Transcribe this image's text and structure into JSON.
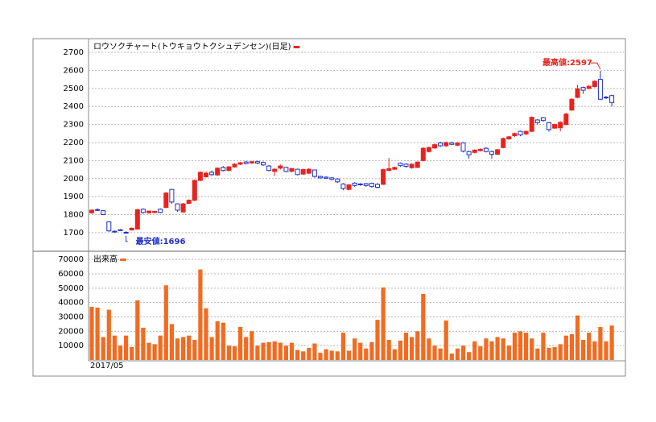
{
  "chart_data": [
    {
      "type": "candlestick",
      "title": "ロウソクチャート(トウキョウトクシュデンセン)(日足)",
      "up_color": "#e8231e",
      "down_color": "#ffffff",
      "down_edge": "#1c2fc8",
      "legend_color": "#e8231e",
      "ylim": [
        1597,
        2776
      ],
      "yticks": [
        1700,
        1800,
        1900,
        2000,
        2100,
        2200,
        2300,
        2400,
        2500,
        2600,
        2700
      ],
      "grid": true,
      "annotations": [
        {
          "text": "最高値:2597",
          "index": 89,
          "price": 2597,
          "color": "#e8231e"
        },
        {
          "text": "最安値:1696",
          "index": 6,
          "price": 1696,
          "color": "#1c2fc8"
        }
      ],
      "open": [
        1810,
        1828,
        1822,
        1760,
        1708,
        1716,
        1702,
        1715,
        1720,
        1830,
        1810,
        1812,
        1830,
        1840,
        1940,
        1860,
        1815,
        1862,
        1880,
        1990,
        2010,
        2035,
        2020,
        2062,
        2045,
        2065,
        2080,
        2092,
        2086,
        2094,
        2090,
        2070,
        2040,
        2058,
        2062,
        2040,
        2052,
        2025,
        2030,
        2048,
        2012,
        2008,
        2004,
        1998,
        1970,
        1940,
        1975,
        1970,
        1972,
        1974,
        1968,
        1968,
        2045,
        2052,
        2085,
        2080,
        2060,
        2062,
        2100,
        2150,
        2170,
        2198,
        2182,
        2198,
        2185,
        2198,
        2150,
        2145,
        2155,
        2168,
        2150,
        2135,
        2172,
        2220,
        2238,
        2262,
        2248,
        2262,
        2325,
        2338,
        2310,
        2280,
        2282,
        2300,
        2380,
        2450,
        2505,
        2500,
        2510,
        2550,
        2452,
        2460
      ],
      "high": [
        1830,
        1835,
        1825,
        1762,
        1712,
        1720,
        1708,
        1728,
        1832,
        1835,
        1822,
        1822,
        1835,
        1925,
        1942,
        1862,
        1865,
        1885,
        1995,
        2040,
        2040,
        2045,
        2062,
        2070,
        2070,
        2085,
        2092,
        2098,
        2098,
        2100,
        2095,
        2075,
        2058,
        2078,
        2066,
        2060,
        2055,
        2055,
        2058,
        2050,
        2016,
        2012,
        2008,
        2002,
        1975,
        1970,
        1980,
        1975,
        1976,
        1978,
        1975,
        2055,
        2115,
        2066,
        2090,
        2085,
        2085,
        2095,
        2175,
        2178,
        2195,
        2205,
        2205,
        2205,
        2202,
        2202,
        2155,
        2162,
        2168,
        2175,
        2155,
        2165,
        2228,
        2236,
        2255,
        2266,
        2266,
        2345,
        2330,
        2342,
        2315,
        2305,
        2318,
        2365,
        2445,
        2520,
        2510,
        2518,
        2545,
        2597,
        2458,
        2465
      ],
      "low": [
        1805,
        1820,
        1798,
        1705,
        1700,
        1710,
        1696,
        1712,
        1718,
        1805,
        1805,
        1808,
        1808,
        1835,
        1860,
        1815,
        1810,
        1858,
        1875,
        1985,
        2005,
        2015,
        2015,
        2040,
        2040,
        2060,
        2075,
        2078,
        2082,
        2080,
        2070,
        2040,
        2015,
        2050,
        2035,
        2035,
        2018,
        2020,
        2025,
        2005,
        2000,
        1998,
        1990,
        1975,
        1935,
        1935,
        1955,
        1960,
        1955,
        1950,
        1945,
        1965,
        2040,
        2048,
        2065,
        2060,
        2055,
        2058,
        2095,
        2145,
        2165,
        2175,
        2175,
        2185,
        2180,
        2145,
        2110,
        2140,
        2150,
        2145,
        2110,
        2130,
        2168,
        2215,
        2230,
        2235,
        2240,
        2258,
        2300,
        2315,
        2260,
        2275,
        2262,
        2295,
        2375,
        2445,
        2470,
        2495,
        2505,
        2435,
        2440,
        2400
      ],
      "close": [
        1825,
        1826,
        1800,
        1710,
        1706,
        1714,
        1700,
        1725,
        1828,
        1812,
        1820,
        1818,
        1812,
        1920,
        1870,
        1825,
        1860,
        1880,
        1990,
        2035,
        2030,
        2022,
        2058,
        2045,
        2065,
        2080,
        2088,
        2084,
        2094,
        2086,
        2076,
        2045,
        2052,
        2070,
        2040,
        2056,
        2022,
        2050,
        2052,
        2012,
        2004,
        2002,
        1996,
        1982,
        1945,
        1965,
        1962,
        1966,
        1962,
        1956,
        1952,
        2050,
        2055,
        2062,
        2072,
        2068,
        2080,
        2092,
        2168,
        2172,
        2188,
        2182,
        2200,
        2190,
        2198,
        2152,
        2132,
        2158,
        2162,
        2150,
        2135,
        2160,
        2222,
        2232,
        2250,
        2242,
        2262,
        2340,
        2310,
        2322,
        2272,
        2300,
        2312,
        2358,
        2440,
        2498,
        2490,
        2512,
        2540,
        2440,
        2448,
        2422
      ]
    },
    {
      "type": "bar",
      "title": "出来高",
      "color": "#f26b21",
      "legend_color": "#f26b21",
      "ylim": [
        0,
        75700
      ],
      "yticks": [
        10000,
        20000,
        30000,
        40000,
        50000,
        60000,
        70000
      ],
      "grid": true,
      "date_label": "2017/05",
      "values": [
        37000,
        36500,
        16000,
        35000,
        17000,
        10000,
        17000,
        9000,
        41500,
        22500,
        12000,
        11000,
        17000,
        52000,
        25000,
        15000,
        16000,
        17000,
        14000,
        63000,
        36000,
        16000,
        27000,
        26000,
        10000,
        9500,
        23000,
        16000,
        20000,
        10000,
        12000,
        12500,
        13000,
        12000,
        10000,
        12000,
        7000,
        6000,
        8500,
        11500,
        5000,
        7500,
        6500,
        6000,
        19000,
        6500,
        15000,
        12000,
        8000,
        12500,
        28000,
        50500,
        14000,
        7500,
        13500,
        19000,
        16000,
        20000,
        46000,
        15000,
        10000,
        8000,
        27500,
        4500,
        8000,
        10000,
        5500,
        13000,
        9500,
        15000,
        13000,
        16000,
        15000,
        10000,
        19000,
        20000,
        19000,
        15000,
        8000,
        19000,
        8500,
        9000,
        11000,
        17000,
        18000,
        31000,
        14000,
        19000,
        13000,
        23000,
        13000,
        24000
      ]
    }
  ]
}
